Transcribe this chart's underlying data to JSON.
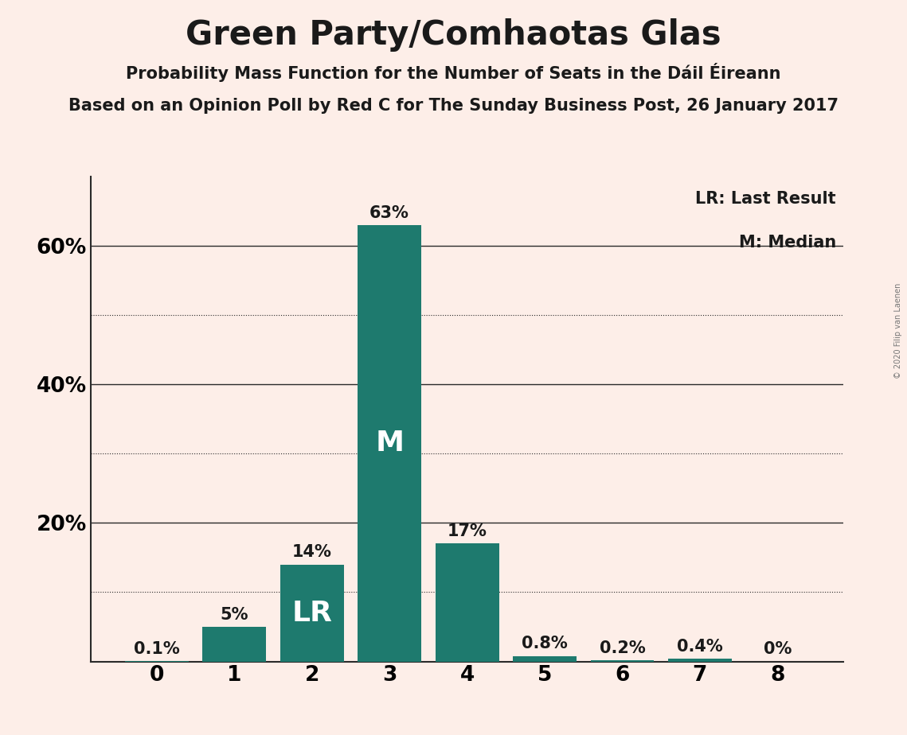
{
  "title": "Green Party/Comhaotas Glas",
  "subtitle1": "Probability Mass Function for the Number of Seats in the Dáil Éireann",
  "subtitle2": "Based on an Opinion Poll by Red C for The Sunday Business Post, 26 January 2017",
  "copyright": "© 2020 Filip van Laenen",
  "categories": [
    0,
    1,
    2,
    3,
    4,
    5,
    6,
    7,
    8
  ],
  "values": [
    0.1,
    5.0,
    14.0,
    63.0,
    17.0,
    0.8,
    0.2,
    0.4,
    0.0
  ],
  "bar_color": "#1E7A6E",
  "background_color": "#FDEEE8",
  "bar_labels": [
    "0.1%",
    "5%",
    "14%",
    "63%",
    "17%",
    "0.8%",
    "0.2%",
    "0.4%",
    "0%"
  ],
  "bar_inner_labels": [
    null,
    null,
    "LR",
    "M",
    null,
    null,
    null,
    null,
    null
  ],
  "legend_lr": "LR: Last Result",
  "legend_m": "M: Median",
  "ylim": [
    0,
    70
  ],
  "yticks": [
    0,
    20,
    40,
    60
  ],
  "ytick_labels": [
    "",
    "20%",
    "40%",
    "60%"
  ],
  "solid_gridlines": [
    20,
    40,
    60
  ],
  "dotted_gridlines": [
    10,
    30,
    50
  ],
  "title_fontsize": 30,
  "subtitle_fontsize": 15,
  "label_fontsize": 15,
  "inner_label_fontsize": 26,
  "tick_fontsize": 19,
  "legend_fontsize": 15
}
